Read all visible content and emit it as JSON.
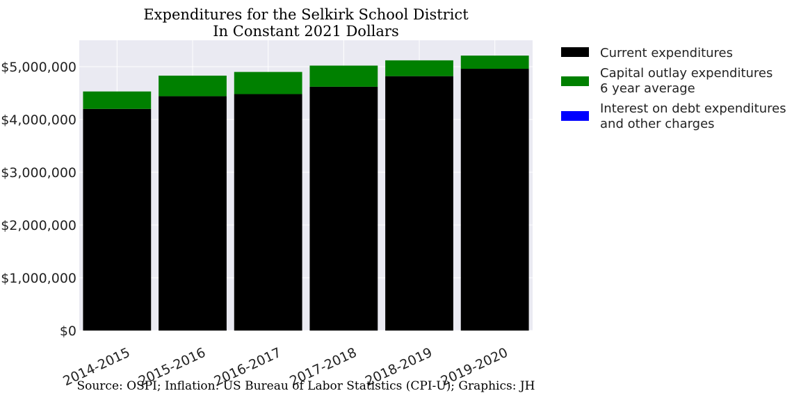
{
  "chart_data": {
    "type": "bar",
    "stacked": true,
    "title": "Expenditures for the Selkirk School District",
    "subtitle": "In Constant 2021 Dollars",
    "xlabel": "",
    "ylabel": "",
    "source": "Source: OSPI; Inflation: US Bureau of Labor Statistics (CPI-U); Graphics: JH",
    "categories": [
      "2014-2015",
      "2015-2016",
      "2016-2017",
      "2017-2018",
      "2018-2019",
      "2019-2020"
    ],
    "ylim": [
      0,
      5500000
    ],
    "yticks": [
      0,
      1000000,
      2000000,
      3000000,
      4000000,
      5000000
    ],
    "ytick_labels": [
      "$0",
      "$1,000,000",
      "$2,000,000",
      "$3,000,000",
      "$4,000,000",
      "$5,000,000"
    ],
    "grid": true,
    "legend_position": "right, outside plot",
    "series": [
      {
        "name": "Current expenditures",
        "legend_lines": [
          "Current expenditures"
        ],
        "color": "#000000",
        "values": [
          4200000,
          4440000,
          4480000,
          4620000,
          4820000,
          4960000
        ]
      },
      {
        "name": "Capital outlay expenditures 6 year average",
        "legend_lines": [
          "Capital outlay expenditures",
          "6 year average"
        ],
        "color": "#008000",
        "values": [
          330000,
          390000,
          420000,
          400000,
          300000,
          250000
        ]
      },
      {
        "name": "Interest on debt expenditures and other charges",
        "legend_lines": [
          "Interest on debt expenditures",
          "and other charges"
        ],
        "color": "#0000ff",
        "values": [
          0,
          0,
          0,
          0,
          0,
          0
        ]
      }
    ]
  }
}
